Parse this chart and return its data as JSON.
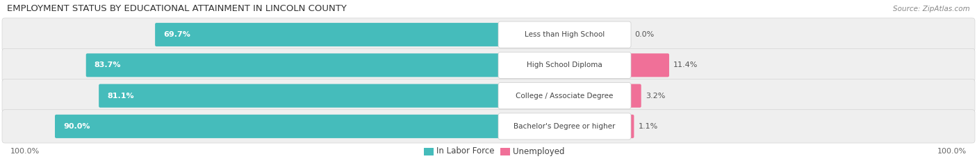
{
  "title": "EMPLOYMENT STATUS BY EDUCATIONAL ATTAINMENT IN LINCOLN COUNTY",
  "source": "Source: ZipAtlas.com",
  "categories": [
    "Less than High School",
    "High School Diploma",
    "College / Associate Degree",
    "Bachelor's Degree or higher"
  ],
  "labor_force": [
    69.7,
    83.7,
    81.1,
    90.0
  ],
  "unemployed": [
    0.0,
    11.4,
    3.2,
    1.1
  ],
  "labor_force_color": "#45BCBB",
  "unemployed_color": "#F07098",
  "row_bg_color": "#EFEFEF",
  "max_value": 100.0,
  "title_fontsize": 9.5,
  "label_fontsize": 8.0,
  "tick_fontsize": 8.0,
  "legend_fontsize": 8.5,
  "source_fontsize": 7.5,
  "background_color": "#FFFFFF",
  "left_axis_label": "100.0%",
  "right_axis_label": "100.0%"
}
